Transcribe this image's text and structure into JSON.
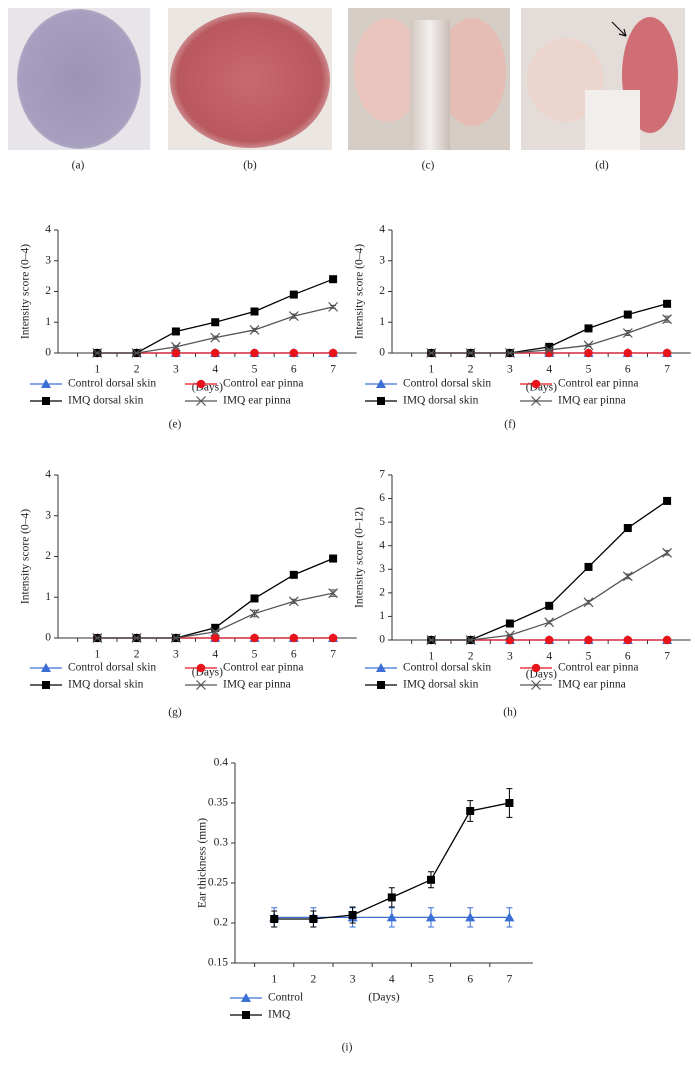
{
  "photo_captions": [
    "(a)",
    "(b)",
    "(c)",
    "(d)"
  ],
  "chart_data": [
    {
      "type": "line",
      "caption": "(e)",
      "y_label": "Intensity score (0–4)",
      "x_label": "(Days)",
      "categories": [
        1,
        2,
        3,
        4,
        5,
        6,
        7
      ],
      "ylim": [
        0,
        4
      ],
      "yticks": [
        0,
        1,
        2,
        3,
        4
      ],
      "series": [
        {
          "name": "Control dorsal skin",
          "color": "#3b6fd6",
          "marker": "triangle",
          "values": [
            0,
            0,
            0,
            0,
            0,
            0,
            0
          ]
        },
        {
          "name": "Control ear pinna",
          "color": "#e8141c",
          "marker": "circle",
          "values": [
            0,
            0,
            0,
            0,
            0,
            0,
            0
          ]
        },
        {
          "name": "IMQ dorsal skin",
          "color": "#000000",
          "marker": "square",
          "values": [
            0,
            0,
            0.7,
            1.0,
            1.35,
            1.9,
            2.4
          ],
          "errors": [
            0,
            0,
            0.04,
            0.05,
            0.08,
            0.07,
            0.08
          ]
        },
        {
          "name": "IMQ ear pinna",
          "color": "#555555",
          "marker": "x",
          "values": [
            0,
            0,
            0.2,
            0.5,
            0.75,
            1.2,
            1.5
          ],
          "errors": [
            0,
            0,
            0.04,
            0.05,
            0.05,
            0.07,
            0.05
          ]
        }
      ]
    },
    {
      "type": "line",
      "caption": "(f)",
      "y_label": "Intensity score (0–4)",
      "x_label": "(Days)",
      "categories": [
        1,
        2,
        3,
        4,
        5,
        6,
        7
      ],
      "ylim": [
        0,
        4
      ],
      "yticks": [
        0,
        1,
        2,
        3,
        4
      ],
      "series": [
        {
          "name": "Control dorsal skin",
          "color": "#3b6fd6",
          "marker": "triangle",
          "values": [
            0,
            0,
            0,
            0,
            0,
            0,
            0
          ]
        },
        {
          "name": "Control ear pinna",
          "color": "#e8141c",
          "marker": "circle",
          "values": [
            0,
            0,
            0,
            0,
            0,
            0,
            0
          ]
        },
        {
          "name": "IMQ dorsal skin",
          "color": "#000000",
          "marker": "square",
          "values": [
            0,
            0,
            0,
            0.2,
            0.8,
            1.25,
            1.6
          ],
          "errors": [
            0,
            0,
            0,
            0.04,
            0.05,
            0.06,
            0.06
          ]
        },
        {
          "name": "IMQ ear pinna",
          "color": "#555555",
          "marker": "x",
          "values": [
            0,
            0,
            0,
            0.1,
            0.25,
            0.65,
            1.1
          ],
          "errors": [
            0,
            0,
            0,
            0.03,
            0.04,
            0.08,
            0.1
          ]
        }
      ]
    },
    {
      "type": "line",
      "caption": "(g)",
      "y_label": "Intensity score (0–4)",
      "x_label": "(Days)",
      "categories": [
        1,
        2,
        3,
        4,
        5,
        6,
        7
      ],
      "ylim": [
        0,
        4
      ],
      "yticks": [
        0,
        1,
        2,
        3,
        4
      ],
      "series": [
        {
          "name": "Control dorsal skin",
          "color": "#3b6fd6",
          "marker": "triangle",
          "values": [
            0,
            0,
            0,
            0,
            0,
            0,
            0
          ]
        },
        {
          "name": "Control ear pinna",
          "color": "#e8141c",
          "marker": "circle",
          "values": [
            0,
            0,
            0,
            0,
            0,
            0,
            0
          ]
        },
        {
          "name": "IMQ dorsal skin",
          "color": "#000000",
          "marker": "square",
          "values": [
            0,
            0,
            0,
            0.25,
            0.97,
            1.55,
            1.95
          ],
          "errors": [
            0,
            0,
            0,
            0.04,
            0.06,
            0.05,
            0.08
          ]
        },
        {
          "name": "IMQ ear pinna",
          "color": "#555555",
          "marker": "x",
          "values": [
            0,
            0,
            0,
            0.15,
            0.6,
            0.9,
            1.1
          ],
          "errors": [
            0,
            0,
            0,
            0.03,
            0.08,
            0.05,
            0.08
          ]
        }
      ]
    },
    {
      "type": "line",
      "caption": "(h)",
      "y_label": "Intensity score (0–12)",
      "x_label": "(Days)",
      "categories": [
        1,
        2,
        3,
        4,
        5,
        6,
        7
      ],
      "ylim": [
        0,
        7
      ],
      "yticks": [
        0,
        1,
        2,
        3,
        4,
        5,
        6,
        7
      ],
      "series": [
        {
          "name": "Control dorsal skin",
          "color": "#3b6fd6",
          "marker": "triangle",
          "values": [
            0,
            0,
            0,
            0,
            0,
            0,
            0
          ]
        },
        {
          "name": "Control ear pinna",
          "color": "#e8141c",
          "marker": "circle",
          "values": [
            0,
            0,
            0,
            0,
            0,
            0,
            0
          ]
        },
        {
          "name": "IMQ dorsal skin",
          "color": "#000000",
          "marker": "square",
          "values": [
            0,
            0,
            0.7,
            1.45,
            3.1,
            4.75,
            5.9
          ],
          "errors": [
            0,
            0,
            0.05,
            0.06,
            0.08,
            0.12,
            0.12
          ]
        },
        {
          "name": "IMQ ear pinna",
          "color": "#555555",
          "marker": "x",
          "values": [
            0,
            0,
            0.2,
            0.75,
            1.6,
            2.7,
            3.7
          ],
          "errors": [
            0,
            0,
            0.04,
            0.06,
            0.08,
            0.1,
            0.1
          ]
        }
      ]
    },
    {
      "type": "line",
      "caption": "(i)",
      "y_label": "Ear thickness (mm)",
      "x_label": "(Days)",
      "categories": [
        1,
        2,
        3,
        4,
        5,
        6,
        7
      ],
      "ylim": [
        0.15,
        0.4
      ],
      "yticks": [
        0.15,
        0.2,
        0.25,
        0.3,
        0.35,
        0.4
      ],
      "series": [
        {
          "name": "Control",
          "color": "#3b6fd6",
          "marker": "triangle",
          "values": [
            0.207,
            0.207,
            0.207,
            0.207,
            0.207,
            0.207,
            0.207
          ],
          "errors": [
            0.012,
            0.012,
            0.012,
            0.012,
            0.012,
            0.012,
            0.012
          ]
        },
        {
          "name": "IMQ",
          "color": "#000000",
          "marker": "square",
          "values": [
            0.205,
            0.205,
            0.21,
            0.232,
            0.254,
            0.34,
            0.35
          ],
          "errors": [
            0.01,
            0.01,
            0.01,
            0.012,
            0.01,
            0.013,
            0.018
          ]
        }
      ]
    }
  ]
}
